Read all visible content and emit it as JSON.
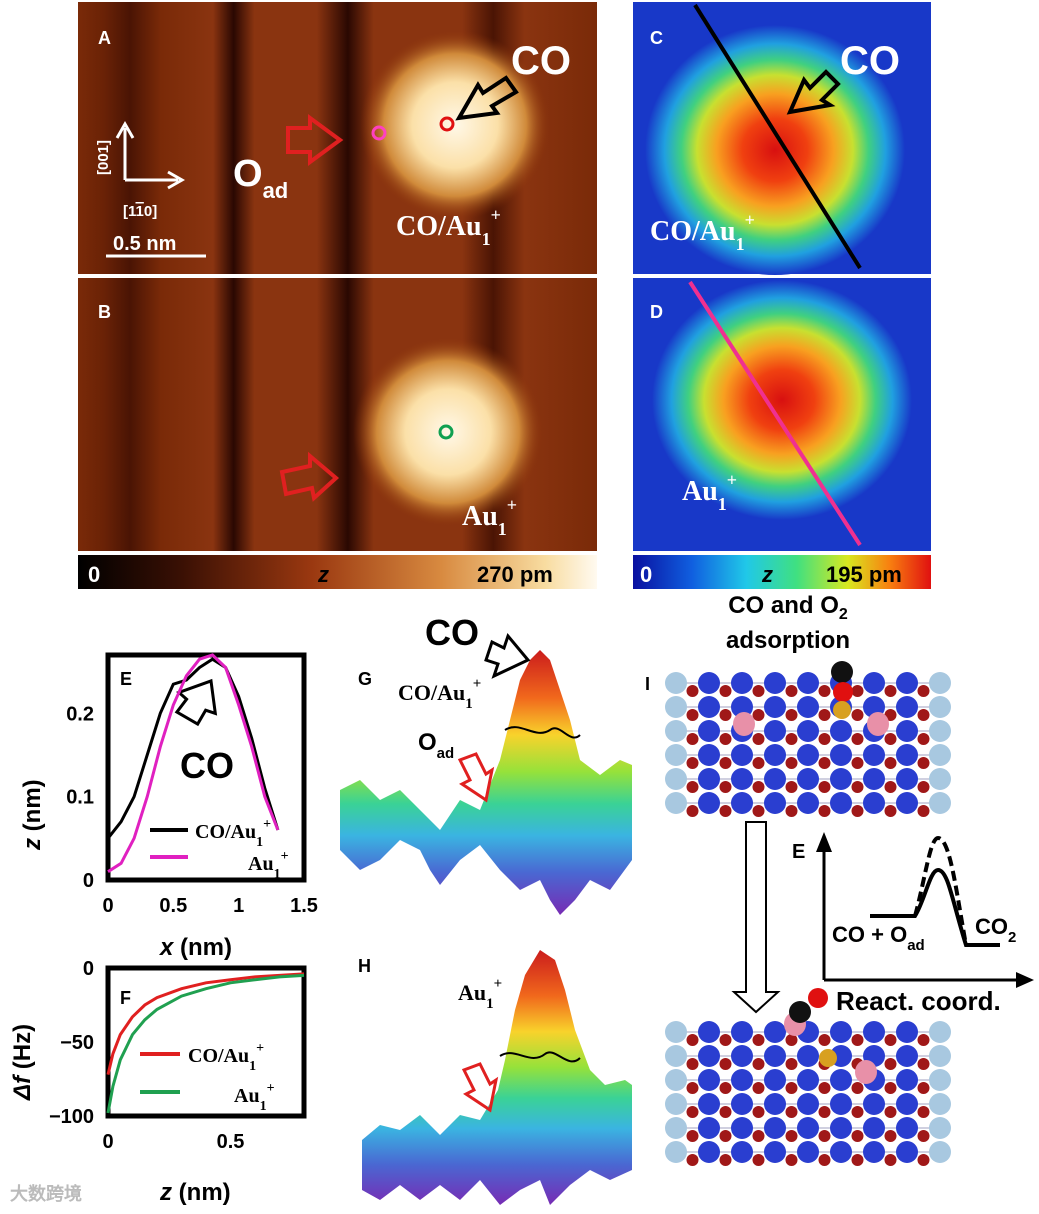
{
  "panels": {
    "A": {
      "letter": "A",
      "co": "CO",
      "oad": "O",
      "oad_sub": "ad",
      "species": "CO/Au",
      "scale": "0.5 nm",
      "dir_y": "[001]",
      "dir_x": "[1",
      "dir_x_bar": "1",
      "dir_x_end": "0]"
    },
    "B": {
      "letter": "B",
      "species": "Au"
    },
    "C": {
      "letter": "C",
      "co": "CO",
      "species": "CO/Au"
    },
    "D": {
      "letter": "D",
      "species": "Au"
    },
    "E": {
      "letter": "E",
      "co": "CO",
      "xlabel": "x",
      "xunit": "(nm)",
      "ylabel": "z",
      "yunit": "(nm)",
      "xticks": [
        "0",
        "0.5",
        "1",
        "1.5"
      ],
      "yticks": [
        "0",
        "0.1",
        "0.2"
      ],
      "legend": [
        "CO/Au",
        "Au"
      ]
    },
    "F": {
      "letter": "F",
      "xlabel": "z",
      "xunit": "(nm)",
      "ylabel": "Δf",
      "yunit": "(Hz)",
      "xticks": [
        "0",
        "0.5"
      ],
      "yticks": [
        "0",
        "−50",
        "−100"
      ],
      "legend": [
        "CO/Au",
        "Au"
      ]
    },
    "G": {
      "letter": "G",
      "co": "CO",
      "species": "CO/Au",
      "oad": "O",
      "oad_sub": "ad"
    },
    "H": {
      "letter": "H",
      "species": "Au"
    },
    "I": {
      "letter": "I",
      "title1": "CO and O",
      "title_sub": "2",
      "title2": "adsorption"
    },
    "energy": {
      "letter": "E",
      "reactant": "CO + O",
      "reactant_sub": "ad",
      "product": "CO",
      "product_sub": "2",
      "xaxis": "React. coord."
    }
  },
  "sup_plus": "+",
  "sub_one": "1",
  "colorbars": {
    "left": {
      "min": "0",
      "label": "z",
      "max": "270 pm"
    },
    "right": {
      "min": "0",
      "label": "z",
      "max": "195 pm"
    }
  },
  "watermark": "大数跨境",
  "chart_data": [
    {
      "type": "line",
      "title": "E",
      "xlabel": "x (nm)",
      "ylabel": "z (nm)",
      "xlim": [
        0,
        1.5
      ],
      "ylim": [
        0,
        0.27
      ],
      "series": [
        {
          "name": "CO/Au1+",
          "color": "#000000",
          "x": [
            0,
            0.1,
            0.2,
            0.3,
            0.4,
            0.5,
            0.6,
            0.7,
            0.8,
            0.9,
            1.0,
            1.1,
            1.2,
            1.3
          ],
          "y": [
            0.05,
            0.07,
            0.1,
            0.15,
            0.2,
            0.235,
            0.24,
            0.255,
            0.265,
            0.255,
            0.22,
            0.17,
            0.11,
            0.06
          ]
        },
        {
          "name": "Au1+",
          "color": "#e020c0",
          "x": [
            0,
            0.1,
            0.2,
            0.3,
            0.4,
            0.5,
            0.6,
            0.7,
            0.8,
            0.9,
            1.0,
            1.1,
            1.2,
            1.3
          ],
          "y": [
            0.01,
            0.02,
            0.05,
            0.1,
            0.16,
            0.21,
            0.245,
            0.265,
            0.27,
            0.255,
            0.21,
            0.16,
            0.1,
            0.06
          ]
        }
      ]
    },
    {
      "type": "line",
      "title": "F",
      "xlabel": "z (nm)",
      "ylabel": "Δf (Hz)",
      "xlim": [
        0,
        0.8
      ],
      "ylim": [
        -100,
        0
      ],
      "series": [
        {
          "name": "CO/Au1+",
          "color": "#e02020",
          "x": [
            0,
            0.02,
            0.05,
            0.1,
            0.15,
            0.2,
            0.3,
            0.4,
            0.5,
            0.6,
            0.7,
            0.8
          ],
          "y": [
            -72,
            -58,
            -45,
            -33,
            -25,
            -20,
            -14,
            -10,
            -8,
            -6,
            -5,
            -4
          ]
        },
        {
          "name": "Au1+",
          "color": "#20a050",
          "x": [
            0,
            0.02,
            0.05,
            0.1,
            0.15,
            0.2,
            0.3,
            0.4,
            0.5,
            0.6,
            0.7,
            0.8
          ],
          "y": [
            -98,
            -80,
            -62,
            -45,
            -35,
            -28,
            -19,
            -14,
            -10,
            -8,
            -6,
            -5
          ]
        }
      ]
    }
  ]
}
